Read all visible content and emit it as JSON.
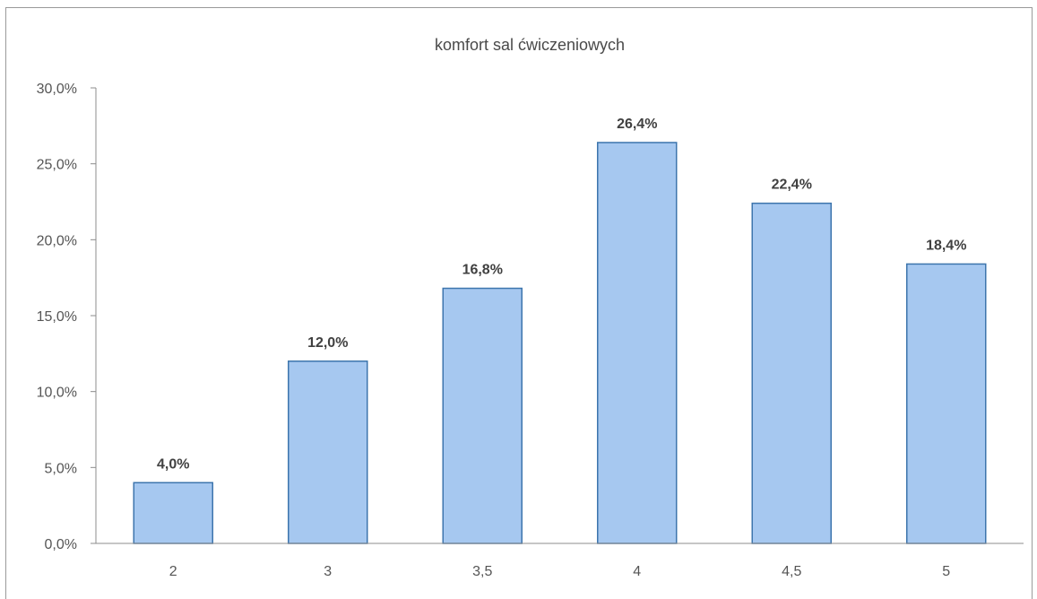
{
  "chart_data": {
    "type": "bar",
    "title": "komfort sal ćwiczeniowych",
    "categories": [
      "2",
      "3",
      "3,5",
      "4",
      "4,5",
      "5"
    ],
    "values": [
      4.0,
      12.0,
      16.8,
      26.4,
      22.4,
      18.4
    ],
    "data_labels": [
      "4,0%",
      "12,0%",
      "16,8%",
      "26,4%",
      "22,4%",
      "18,4%"
    ],
    "ylim": [
      0,
      30
    ],
    "y_ticks": [
      0,
      5,
      10,
      15,
      20,
      25,
      30
    ],
    "y_tick_labels": [
      "0,0%",
      "5,0%",
      "10,0%",
      "15,0%",
      "20,0%",
      "25,0%",
      "30,0%"
    ],
    "xlabel": "",
    "ylabel": "",
    "grid": false,
    "legend": "none",
    "colors": {
      "bar_fill": "#a6c8f0",
      "bar_stroke": "#3d75ad",
      "axis": "#8c8c8c"
    }
  }
}
